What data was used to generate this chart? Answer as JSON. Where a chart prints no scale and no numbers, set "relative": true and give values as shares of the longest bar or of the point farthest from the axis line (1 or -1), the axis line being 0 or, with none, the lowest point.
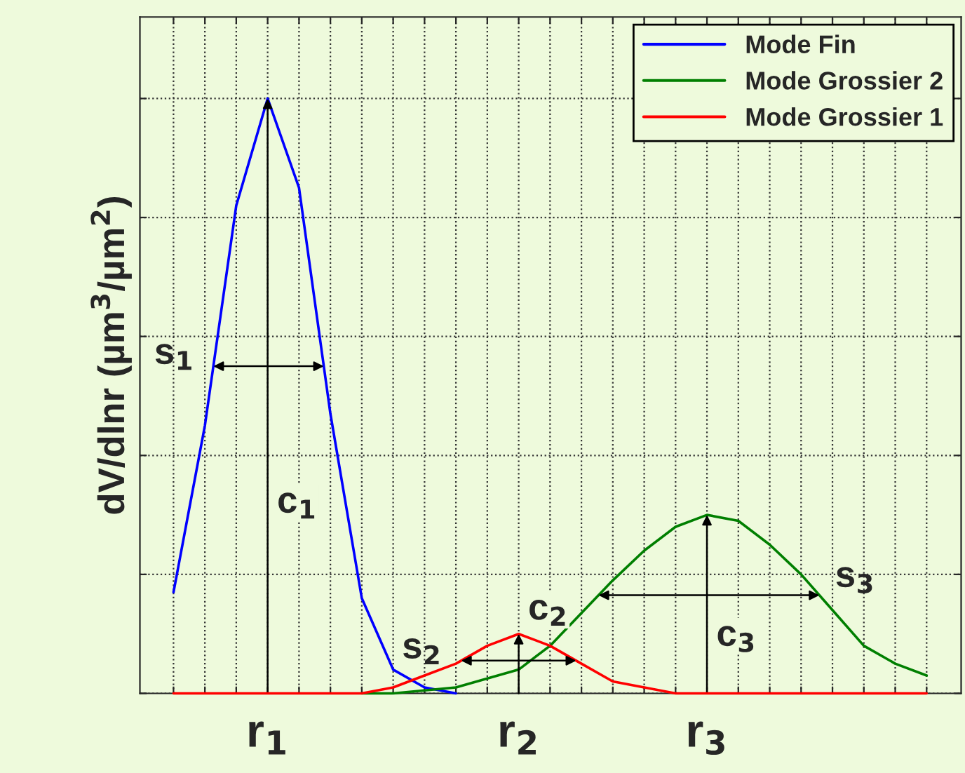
{
  "chart_data": {
    "type": "line",
    "relative": true,
    "categories": [
      null,
      null,
      null,
      "r$_{1}$",
      null,
      null,
      null,
      null,
      null,
      null,
      null,
      "r$_{2}$",
      null,
      null,
      null,
      null,
      null,
      "r$_{3}$",
      null,
      null,
      null,
      null,
      null,
      null,
      null
    ],
    "ylabel": "dV/dlnr (µm$^{3}$/µm$^{2}$)",
    "grid": true,
    "legend": "top right",
    "tick_labels": "x",
    "series": [
      {
        "name": "Mode Fin",
        "color": "#0000ff",
        "values": [
          0.17,
          0.45,
          0.82,
          1.0,
          0.85,
          0.47,
          0.16,
          0.04,
          0.01,
          0,
          null,
          null,
          null,
          null,
          null,
          null,
          null,
          null,
          null,
          null,
          null,
          null,
          null,
          null,
          null
        ]
      },
      {
        "name": "Mode Grossier 2",
        "color": "#007f00",
        "values": [
          null,
          null,
          null,
          null,
          null,
          null,
          0,
          0,
          0.005,
          0.01,
          0.025,
          0.04,
          0.08,
          0.135,
          0.19,
          0.24,
          0.28,
          0.3,
          0.29,
          0.25,
          0.2,
          0.14,
          0.08,
          0.05,
          0.03
        ]
      },
      {
        "name": "Mode Grossier 1",
        "color": "#ff0000",
        "values": [
          0,
          0,
          0,
          0,
          0,
          0,
          0,
          0.01,
          0.03,
          0.05,
          0.08,
          0.1,
          0.08,
          0.05,
          0.02,
          0.01,
          0,
          0,
          0,
          0,
          0,
          0,
          0,
          0,
          0
        ]
      }
    ],
    "annotations": [
      "c$_{1}$",
      "c$_{2}$",
      "c$_{3}$",
      "s$_{1}$",
      "s$_{2}$",
      "s$_{3}$"
    ]
  }
}
